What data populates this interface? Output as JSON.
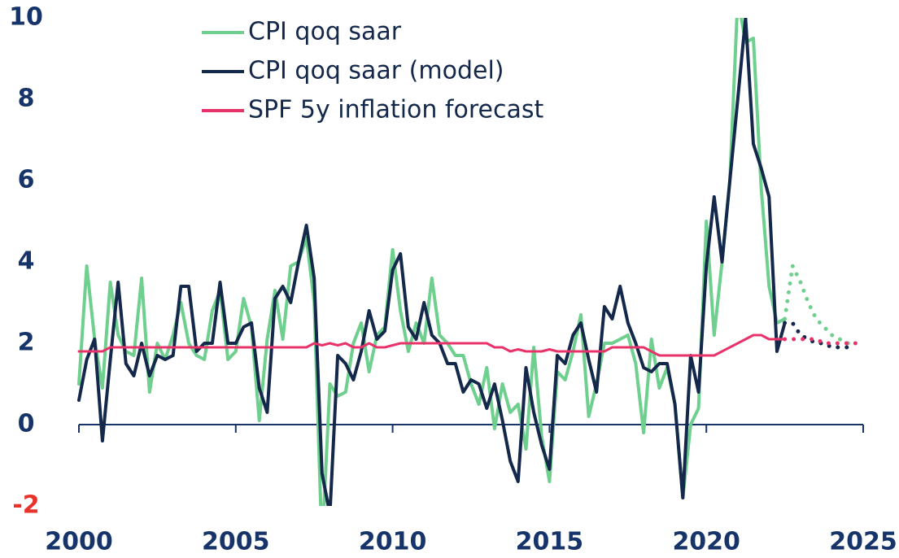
{
  "chart_data": {
    "type": "line",
    "x": [
      2000,
      2000.25,
      2000.5,
      2000.75,
      2001,
      2001.25,
      2001.5,
      2001.75,
      2002,
      2002.25,
      2002.5,
      2002.75,
      2003,
      2003.25,
      2003.5,
      2003.75,
      2004,
      2004.25,
      2004.5,
      2004.75,
      2005,
      2005.25,
      2005.5,
      2005.75,
      2006,
      2006.25,
      2006.5,
      2006.75,
      2007,
      2007.25,
      2007.5,
      2007.75,
      2008,
      2008.25,
      2008.5,
      2008.75,
      2009,
      2009.25,
      2009.5,
      2009.75,
      2010,
      2010.25,
      2010.5,
      2010.75,
      2011,
      2011.25,
      2011.5,
      2011.75,
      2012,
      2012.25,
      2012.5,
      2012.75,
      2013,
      2013.25,
      2013.5,
      2013.75,
      2014,
      2014.25,
      2014.5,
      2014.75,
      2015,
      2015.25,
      2015.5,
      2015.75,
      2016,
      2016.25,
      2016.5,
      2016.75,
      2017,
      2017.25,
      2017.5,
      2017.75,
      2018,
      2018.25,
      2018.5,
      2018.75,
      2019,
      2019.25,
      2019.5,
      2019.75,
      2020,
      2020.25,
      2020.5,
      2020.75,
      2021,
      2021.25,
      2021.5,
      2021.75,
      2022,
      2022.25,
      2022.5,
      2022.75,
      2023,
      2023.25,
      2023.5,
      2023.75,
      2024,
      2024.25,
      2024.5,
      2024.75
    ],
    "series": [
      {
        "name": "CPI qoq saar",
        "color": "#6fcf8e",
        "values": [
          1.0,
          3.9,
          2.1,
          0.9,
          3.5,
          2.2,
          1.8,
          1.7,
          3.6,
          0.8,
          2.0,
          1.6,
          2.2,
          3.0,
          2.0,
          1.7,
          1.6,
          2.8,
          3.3,
          1.6,
          1.8,
          3.1,
          2.4,
          0.1,
          2.1,
          3.3,
          2.1,
          3.9,
          4.0,
          4.6,
          3.0,
          -3.0,
          1.0,
          0.7,
          0.8,
          2.0,
          2.5,
          1.3,
          2.2,
          2.4,
          4.3,
          2.8,
          1.8,
          2.5,
          2.0,
          3.6,
          2.2,
          2.0,
          1.7,
          1.7,
          1.0,
          0.5,
          1.4,
          -0.1,
          1.0,
          0.3,
          0.5,
          -0.6,
          1.9,
          -0.3,
          -1.4,
          1.3,
          1.1,
          1.8,
          2.7,
          0.2,
          1.0,
          2.0,
          2.0,
          2.1,
          2.2,
          1.5,
          -0.2,
          2.1,
          0.9,
          1.4,
          0.5,
          -1.8,
          0.0,
          0.4,
          5.0,
          2.2,
          4.0,
          6.0,
          10.5,
          9.4,
          9.5,
          5.8,
          3.4,
          2.5,
          2.6,
          null,
          null,
          null,
          null,
          null,
          null,
          null,
          null,
          null
        ],
        "forecast_values": [
          null,
          null,
          null,
          null,
          null,
          null,
          null,
          null,
          null,
          null,
          null,
          null,
          null,
          null,
          null,
          null,
          null,
          null,
          null,
          null,
          null,
          null,
          null,
          null,
          null,
          null,
          null,
          null,
          null,
          null,
          null,
          null,
          null,
          null,
          null,
          null,
          null,
          null,
          null,
          null,
          null,
          null,
          null,
          null,
          null,
          null,
          null,
          null,
          null,
          null,
          null,
          null,
          null,
          null,
          null,
          null,
          null,
          null,
          null,
          null,
          null,
          null,
          null,
          null,
          null,
          null,
          null,
          null,
          null,
          null,
          null,
          null,
          null,
          null,
          null,
          null,
          null,
          null,
          null,
          null,
          null,
          null,
          null,
          null,
          null,
          null,
          null,
          null,
          null,
          null,
          2.6,
          3.9,
          3.5,
          3.0,
          2.6,
          2.4,
          2.2,
          2.1,
          2.0,
          2.0
        ]
      },
      {
        "name": "CPI qoq saar (model)",
        "color": "#14284b",
        "values": [
          0.6,
          1.6,
          2.1,
          -0.4,
          1.6,
          3.5,
          1.5,
          1.2,
          2.0,
          1.2,
          1.7,
          1.6,
          1.7,
          3.4,
          3.4,
          1.8,
          2.0,
          2.0,
          3.5,
          2.0,
          2.0,
          2.4,
          2.5,
          0.9,
          0.3,
          3.1,
          3.4,
          3.0,
          4.0,
          4.9,
          3.6,
          -1.2,
          -2.2,
          1.7,
          1.5,
          1.1,
          1.8,
          2.8,
          2.1,
          2.3,
          3.8,
          4.2,
          2.4,
          2.1,
          3.0,
          2.2,
          2.0,
          1.5,
          1.5,
          0.8,
          1.1,
          1.0,
          0.4,
          1.0,
          0.1,
          -0.9,
          -1.4,
          1.4,
          0.3,
          -0.5,
          -1.1,
          1.7,
          1.5,
          2.2,
          2.5,
          1.6,
          0.8,
          2.9,
          2.6,
          3.4,
          2.5,
          2.0,
          1.4,
          1.3,
          1.5,
          1.5,
          0.5,
          -1.8,
          1.7,
          0.8,
          3.9,
          5.6,
          4.0,
          6.0,
          8.0,
          10.0,
          6.9,
          6.3,
          5.6,
          1.8,
          2.5,
          null,
          null,
          null,
          null,
          null,
          null,
          null,
          null,
          null
        ],
        "forecast_values": [
          null,
          null,
          null,
          null,
          null,
          null,
          null,
          null,
          null,
          null,
          null,
          null,
          null,
          null,
          null,
          null,
          null,
          null,
          null,
          null,
          null,
          null,
          null,
          null,
          null,
          null,
          null,
          null,
          null,
          null,
          null,
          null,
          null,
          null,
          null,
          null,
          null,
          null,
          null,
          null,
          null,
          null,
          null,
          null,
          null,
          null,
          null,
          null,
          null,
          null,
          null,
          null,
          null,
          null,
          null,
          null,
          null,
          null,
          null,
          null,
          null,
          null,
          null,
          null,
          null,
          null,
          null,
          null,
          null,
          null,
          null,
          null,
          null,
          null,
          null,
          null,
          null,
          null,
          null,
          null,
          null,
          null,
          null,
          null,
          null,
          null,
          null,
          null,
          null,
          null,
          2.5,
          2.5,
          2.2,
          2.1,
          2.0,
          2.0,
          1.9,
          1.9,
          1.9,
          1.85
        ]
      },
      {
        "name": "SPF 5y inflation forecast",
        "color": "#e8336a",
        "values": [
          1.8,
          1.8,
          1.8,
          1.8,
          1.9,
          1.9,
          1.9,
          1.9,
          1.9,
          1.9,
          1.9,
          1.9,
          1.9,
          1.9,
          1.9,
          1.9,
          1.9,
          1.9,
          1.9,
          1.9,
          1.9,
          1.9,
          1.9,
          1.9,
          1.9,
          1.9,
          1.9,
          1.9,
          1.9,
          1.9,
          2.0,
          1.95,
          2.0,
          1.95,
          2.0,
          1.9,
          1.9,
          2.0,
          1.9,
          1.9,
          1.95,
          2.0,
          2.0,
          2.0,
          2.0,
          2.0,
          2.0,
          2.0,
          2.0,
          2.0,
          2.0,
          2.0,
          2.0,
          1.9,
          1.9,
          1.8,
          1.85,
          1.8,
          1.8,
          1.8,
          1.85,
          1.8,
          1.8,
          1.8,
          1.8,
          1.8,
          1.8,
          1.8,
          1.9,
          1.9,
          1.9,
          1.9,
          1.9,
          1.8,
          1.7,
          1.7,
          1.7,
          1.7,
          1.7,
          1.7,
          1.7,
          1.7,
          1.8,
          1.9,
          2.0,
          2.1,
          2.2,
          2.2,
          2.1,
          2.1,
          2.1,
          null,
          null,
          null,
          null,
          null,
          null,
          null,
          null,
          null
        ],
        "forecast_values": [
          null,
          null,
          null,
          null,
          null,
          null,
          null,
          null,
          null,
          null,
          null,
          null,
          null,
          null,
          null,
          null,
          null,
          null,
          null,
          null,
          null,
          null,
          null,
          null,
          null,
          null,
          null,
          null,
          null,
          null,
          null,
          null,
          null,
          null,
          null,
          null,
          null,
          null,
          null,
          null,
          null,
          null,
          null,
          null,
          null,
          null,
          null,
          null,
          null,
          null,
          null,
          null,
          null,
          null,
          null,
          null,
          null,
          null,
          null,
          null,
          null,
          null,
          null,
          null,
          null,
          null,
          null,
          null,
          null,
          null,
          null,
          null,
          null,
          null,
          null,
          null,
          null,
          null,
          null,
          null,
          null,
          null,
          null,
          null,
          null,
          null,
          null,
          null,
          null,
          null,
          2.1,
          2.1,
          2.1,
          2.1,
          2.1,
          2.0,
          2.0,
          2.0,
          2.0,
          2.0
        ]
      }
    ],
    "xlim": [
      2000,
      2025
    ],
    "xticks": [
      2000,
      2005,
      2010,
      2015,
      2020,
      2025
    ],
    "ylim": [
      -2,
      10
    ],
    "yticks": [
      -2,
      0,
      2,
      4,
      6,
      8,
      10
    ],
    "legend": "upper left"
  }
}
